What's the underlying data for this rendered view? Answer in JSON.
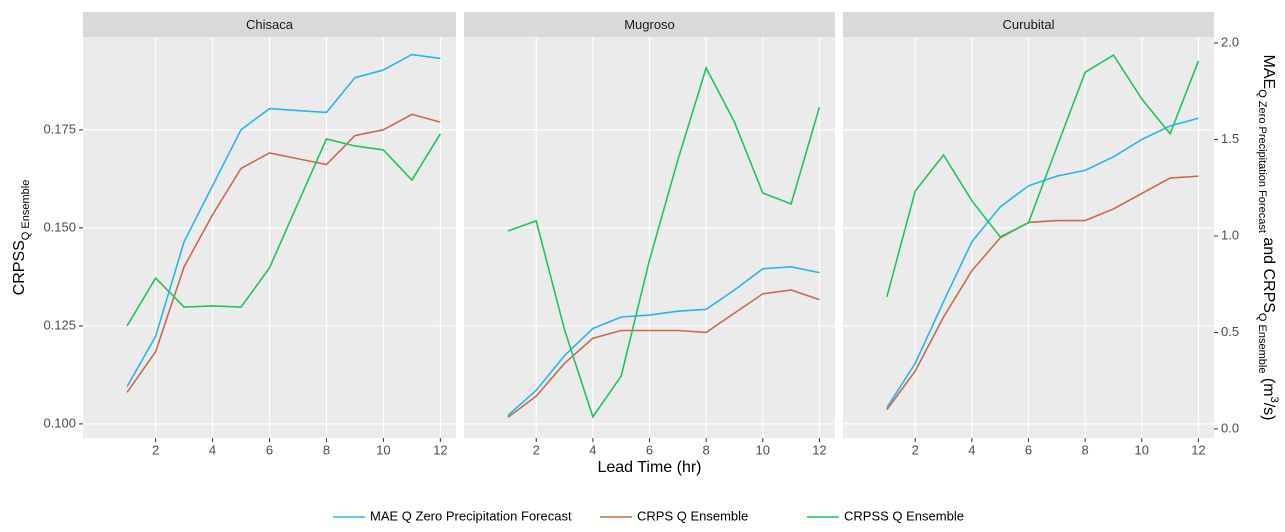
{
  "chart_data": [
    {
      "type": "line",
      "title": "Chisaca",
      "x": [
        1,
        2,
        3,
        4,
        5,
        6,
        7,
        8,
        9,
        10,
        11,
        12
      ],
      "xlim": [
        -0.55,
        12.55
      ],
      "xticks": [
        2,
        4,
        6,
        8,
        10,
        12
      ],
      "ylim": [
        0.0964,
        0.1987
      ],
      "yticks": [
        {
          "value": 0.1,
          "label": "0.100"
        },
        0.125,
        {
          "value": 0.15,
          "label": "0.150"
        },
        0.175
      ],
      "y2lim": [
        -0.047,
        2.031
      ],
      "ylabel": [
        {
          "text": "CRPSS"
        },
        {
          "text": "Q Ensemble",
          "shift": "sub"
        }
      ],
      "grid": true,
      "series": [
        {
          "name": "MAE Q Zero Precipitation Forecast",
          "color": "#29b5e8",
          "axis": "y2",
          "values": [
            0.22,
            0.48,
            0.97,
            1.26,
            1.55,
            1.66,
            1.65,
            1.64,
            1.82,
            1.86,
            1.94,
            1.92
          ]
        },
        {
          "name": "CRPS Q Ensemble",
          "color": "#c96a4c",
          "axis": "y2",
          "values": [
            0.19,
            0.4,
            0.84,
            1.11,
            1.35,
            1.43,
            1.4,
            1.37,
            1.52,
            1.55,
            1.63,
            1.59
          ]
        },
        {
          "name": "CRPSS Q Ensemble",
          "color": "#22c45a",
          "values": [
            0.125,
            0.1372,
            0.1298,
            0.1301,
            0.1298,
            0.1398,
            0.1563,
            0.1727,
            0.1709,
            0.1699,
            0.1622,
            0.174
          ]
        }
      ]
    },
    {
      "type": "line",
      "title": "Mugroso",
      "x": [
        1,
        2,
        3,
        4,
        5,
        6,
        7,
        8,
        9,
        10,
        11,
        12
      ],
      "xlim": [
        -0.55,
        12.55
      ],
      "xticks": [
        2,
        4,
        6,
        8,
        10,
        12
      ],
      "ylim": [
        0.0964,
        0.1987
      ],
      "y2lim": [
        -0.047,
        2.031
      ],
      "xlabel": "Lead Time (hr)",
      "grid": true,
      "series": [
        {
          "name": "MAE Q Zero Precipitation Forecast",
          "color": "#29b5e8",
          "axis": "y2",
          "values": [
            0.07,
            0.2,
            0.38,
            0.52,
            0.58,
            0.59,
            0.61,
            0.62,
            0.72,
            0.83,
            0.84,
            0.81
          ]
        },
        {
          "name": "CRPS Q Ensemble",
          "color": "#c96a4c",
          "axis": "y2",
          "values": [
            0.06,
            0.17,
            0.34,
            0.47,
            0.51,
            0.51,
            0.51,
            0.5,
            0.6,
            0.7,
            0.72,
            0.67
          ]
        },
        {
          "name": "CRPSS Q Ensemble",
          "color": "#22c45a",
          "values": [
            0.1492,
            0.1518,
            0.124,
            0.1018,
            0.1122,
            0.1418,
            0.1673,
            0.1908,
            0.177,
            0.1589,
            0.1561,
            0.1808
          ]
        }
      ]
    },
    {
      "type": "line",
      "title": "Curubital",
      "x": [
        1,
        2,
        3,
        4,
        5,
        6,
        7,
        8,
        9,
        10,
        11,
        12
      ],
      "xlim": [
        -0.55,
        12.55
      ],
      "xticks": [
        2,
        4,
        6,
        8,
        10,
        12
      ],
      "ylim": [
        0.0964,
        0.1987
      ],
      "y2lim": [
        -0.047,
        2.031
      ],
      "y2ticks": [
        {
          "value": 0,
          "label": "0.0"
        },
        0.5,
        {
          "value": 1,
          "label": "1.0"
        },
        1.5,
        {
          "value": 2,
          "label": "2.0"
        }
      ],
      "y2label": [
        {
          "text": "MAE"
        },
        {
          "text": "Q Zero Precipitation Forecast",
          "shift": "sub"
        },
        {
          "text": " and CRPS"
        },
        {
          "text": "Q Ensemble",
          "shift": "sub"
        },
        {
          "text": " (m"
        },
        {
          "text": "3",
          "shift": "super"
        },
        {
          "text": "/s)"
        }
      ],
      "grid": true,
      "series": [
        {
          "name": "MAE Q Zero Precipitation Forecast",
          "color": "#29b5e8",
          "axis": "y2",
          "values": [
            0.11,
            0.34,
            0.66,
            0.97,
            1.15,
            1.26,
            1.31,
            1.34,
            1.41,
            1.5,
            1.57,
            1.61
          ]
        },
        {
          "name": "CRPS Q Ensemble",
          "color": "#c96a4c",
          "axis": "y2",
          "values": [
            0.1,
            0.3,
            0.58,
            0.82,
            0.99,
            1.07,
            1.08,
            1.08,
            1.14,
            1.22,
            1.3,
            1.31
          ]
        },
        {
          "name": "CRPSS Q Ensemble",
          "color": "#22c45a",
          "values": [
            0.1324,
            0.1594,
            0.1686,
            0.1569,
            0.1477,
            0.1513,
            0.1706,
            0.1897,
            0.1941,
            0.1829,
            0.174,
            0.1926
          ]
        }
      ]
    }
  ]
}
